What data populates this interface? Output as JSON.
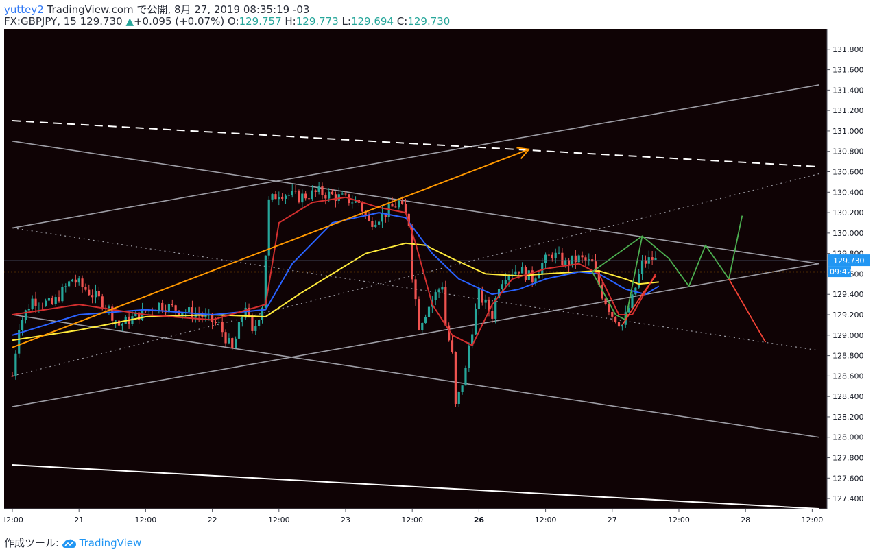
{
  "header": {
    "author": "yuttey2",
    "published": "TradingView.com で公開, 8月 27, 2019 08:35:19 -03",
    "symbol": "FX:GBPJPY, 15",
    "last": "129.730",
    "change_arrow": "▲",
    "change": "+0.095 (+0.07%)",
    "o_label": "O:",
    "o_value": "129.757",
    "h_label": "H:",
    "h_value": "129.773",
    "l_label": "L:",
    "l_value": "129.694",
    "c_label": "C:",
    "c_value": "129.730"
  },
  "footer": {
    "made_with": "作成ツール:",
    "brand": "TradingView",
    "logo_icon": "tradingview-cloud-icon"
  },
  "colors": {
    "background": "#0f0305",
    "up_candle": "#26a69a",
    "down_candle": "#ef5350",
    "ma_fast": "#d32f2f",
    "ma_mid": "#2962ff",
    "ma_slow": "#ffeb3b",
    "channel": "#9e9ea6",
    "arrow": "#ff9800",
    "projection_up": "#4caf50",
    "projection_down": "#f44336",
    "price_label": "#2196f3"
  },
  "chart_data": {
    "type": "candlestick",
    "symbol": "GBPJPY",
    "interval": "15",
    "ylim": [
      127.3,
      131.9
    ],
    "y_ticks": [
      "131.800",
      "131.600",
      "131.400",
      "131.200",
      "131.000",
      "130.800",
      "130.600",
      "130.400",
      "130.200",
      "130.000",
      "129.800",
      "129.600",
      "129.400",
      "129.200",
      "129.000",
      "128.800",
      "128.600",
      "128.400",
      "128.200",
      "128.000",
      "127.800",
      "127.600",
      "127.400"
    ],
    "x_ticks": [
      {
        "label": "12:00",
        "t": 0
      },
      {
        "label": "21",
        "t": 1
      },
      {
        "label": "12:00",
        "t": 2
      },
      {
        "label": "22",
        "t": 3
      },
      {
        "label": "12:00",
        "t": 4
      },
      {
        "label": "23",
        "t": 5
      },
      {
        "label": "12:00",
        "t": 6
      },
      {
        "label": "26",
        "t": 7,
        "bold": true
      },
      {
        "label": "12:00",
        "t": 8
      },
      {
        "label": "27",
        "t": 9
      },
      {
        "label": "12:00",
        "t": 10
      },
      {
        "label": "28",
        "t": 11
      },
      {
        "label": "12:00",
        "t": 12
      }
    ],
    "current_price": "129.730",
    "countdown": "09:42",
    "price_path": [
      [
        0,
        128.6
      ],
      [
        0.1,
        129.1
      ],
      [
        0.3,
        129.35
      ],
      [
        0.6,
        129.3
      ],
      [
        0.9,
        129.55
      ],
      [
        1.1,
        129.45
      ],
      [
        1.4,
        129.3
      ],
      [
        1.6,
        129.1
      ],
      [
        1.9,
        129.2
      ],
      [
        2.2,
        129.3
      ],
      [
        2.5,
        129.25
      ],
      [
        2.8,
        129.2
      ],
      [
        3.1,
        129.1
      ],
      [
        3.3,
        128.85
      ],
      [
        3.5,
        129.3
      ],
      [
        3.6,
        129.0
      ],
      [
        3.75,
        129.3
      ],
      [
        3.85,
        130.3
      ],
      [
        4.0,
        130.4
      ],
      [
        4.3,
        130.35
      ],
      [
        4.6,
        130.4
      ],
      [
        4.9,
        130.35
      ],
      [
        5.2,
        130.3
      ],
      [
        5.35,
        130.1
      ],
      [
        5.6,
        130.2
      ],
      [
        5.8,
        130.3
      ],
      [
        5.95,
        130.1
      ],
      [
        6.0,
        129.6
      ],
      [
        6.1,
        129.1
      ],
      [
        6.3,
        129.35
      ],
      [
        6.45,
        129.5
      ],
      [
        6.5,
        129.1
      ],
      [
        6.6,
        128.8
      ],
      [
        6.65,
        128.3
      ],
      [
        6.8,
        128.65
      ],
      [
        6.85,
        128.9
      ],
      [
        7.0,
        129.4
      ],
      [
        7.2,
        129.2
      ],
      [
        7.3,
        129.5
      ],
      [
        7.4,
        129.6
      ],
      [
        7.6,
        129.65
      ],
      [
        7.8,
        129.55
      ],
      [
        7.95,
        129.7
      ],
      [
        8.1,
        129.8
      ],
      [
        8.3,
        129.7
      ],
      [
        8.5,
        129.75
      ],
      [
        8.7,
        129.7
      ],
      [
        8.85,
        129.4
      ],
      [
        9.0,
        129.2
      ],
      [
        9.15,
        129.1
      ],
      [
        9.3,
        129.35
      ],
      [
        9.45,
        129.7
      ],
      [
        9.6,
        129.75
      ],
      [
        9.65,
        129.73
      ]
    ],
    "ma_fast": [
      [
        0,
        129.2
      ],
      [
        1,
        129.3
      ],
      [
        2,
        129.2
      ],
      [
        3,
        129.15
      ],
      [
        3.8,
        129.3
      ],
      [
        4.0,
        130.1
      ],
      [
        4.5,
        130.3
      ],
      [
        5.0,
        130.35
      ],
      [
        5.5,
        130.25
      ],
      [
        5.9,
        130.2
      ],
      [
        6.05,
        129.9
      ],
      [
        6.3,
        129.3
      ],
      [
        6.6,
        129.0
      ],
      [
        6.9,
        128.9
      ],
      [
        7.2,
        129.3
      ],
      [
        7.5,
        129.55
      ],
      [
        8.0,
        129.65
      ],
      [
        8.5,
        129.7
      ],
      [
        8.8,
        129.6
      ],
      [
        9.1,
        129.2
      ],
      [
        9.3,
        129.2
      ],
      [
        9.65,
        129.6
      ]
    ],
    "ma_mid": [
      [
        0,
        129.0
      ],
      [
        1,
        129.2
      ],
      [
        2,
        129.25
      ],
      [
        3,
        129.2
      ],
      [
        3.8,
        129.25
      ],
      [
        4.2,
        129.7
      ],
      [
        4.8,
        130.1
      ],
      [
        5.5,
        130.2
      ],
      [
        5.9,
        130.15
      ],
      [
        6.3,
        129.8
      ],
      [
        6.7,
        129.55
      ],
      [
        7.2,
        129.4
      ],
      [
        7.6,
        129.45
      ],
      [
        8.0,
        129.55
      ],
      [
        8.5,
        129.62
      ],
      [
        8.8,
        129.6
      ],
      [
        9.2,
        129.45
      ],
      [
        9.5,
        129.4
      ],
      [
        9.7,
        129.48
      ]
    ],
    "ma_slow": [
      [
        0,
        128.95
      ],
      [
        1,
        129.05
      ],
      [
        2,
        129.18
      ],
      [
        3,
        129.2
      ],
      [
        3.8,
        129.18
      ],
      [
        4.3,
        129.4
      ],
      [
        4.8,
        129.6
      ],
      [
        5.3,
        129.8
      ],
      [
        5.9,
        129.9
      ],
      [
        6.2,
        129.88
      ],
      [
        6.6,
        129.75
      ],
      [
        7.1,
        129.6
      ],
      [
        7.6,
        129.58
      ],
      [
        8.0,
        129.6
      ],
      [
        8.5,
        129.62
      ],
      [
        8.8,
        129.63
      ],
      [
        9.2,
        129.55
      ],
      [
        9.4,
        129.5
      ],
      [
        9.7,
        129.52
      ]
    ],
    "channels": [
      {
        "style": "solid",
        "from": [
          0,
          128.3
        ],
        "to": [
          12.1,
          129.7
        ]
      },
      {
        "style": "solid",
        "from": [
          0,
          130.05
        ],
        "to": [
          12.1,
          131.45
        ]
      },
      {
        "style": "solid",
        "from": [
          0,
          130.9
        ],
        "to": [
          12.1,
          129.7
        ]
      },
      {
        "style": "solid",
        "from": [
          0,
          129.2
        ],
        "to": [
          12.1,
          128.0
        ]
      },
      {
        "style": "dotted",
        "from": [
          0,
          130.05
        ],
        "to": [
          12.1,
          128.85
        ]
      },
      {
        "style": "dotted",
        "from": [
          0,
          128.6
        ],
        "to": [
          12.1,
          130.58
        ]
      },
      {
        "style": "dashed",
        "from": [
          0,
          131.1
        ],
        "to": [
          12.1,
          130.65
        ]
      },
      {
        "style": "white-solid",
        "from": [
          0,
          127.73
        ],
        "to": [
          12.1,
          127.3
        ]
      }
    ],
    "arrow": {
      "from": [
        0,
        128.88
      ],
      "to": [
        7.75,
        130.82
      ]
    },
    "horizontal_line": {
      "price": 129.62,
      "style": "dotted"
    },
    "projection_up": [
      [
        8.7,
        129.62
      ],
      [
        9.45,
        129.97
      ],
      [
        9.85,
        129.75
      ],
      [
        10.15,
        129.48
      ],
      [
        10.4,
        129.88
      ],
      [
        10.75,
        129.55
      ],
      [
        10.95,
        130.17
      ]
    ],
    "projection_down": [
      [
        10.75,
        129.55
      ],
      [
        11.3,
        128.93
      ]
    ],
    "green_wave": [
      [
        8.7,
        129.62
      ],
      [
        9.05,
        129.2
      ],
      [
        9.2,
        129.15
      ],
      [
        9.45,
        129.97
      ]
    ],
    "red_wave": [
      [
        9.15,
        129.1
      ],
      [
        9.45,
        129.4
      ],
      [
        9.65,
        129.58
      ]
    ]
  }
}
